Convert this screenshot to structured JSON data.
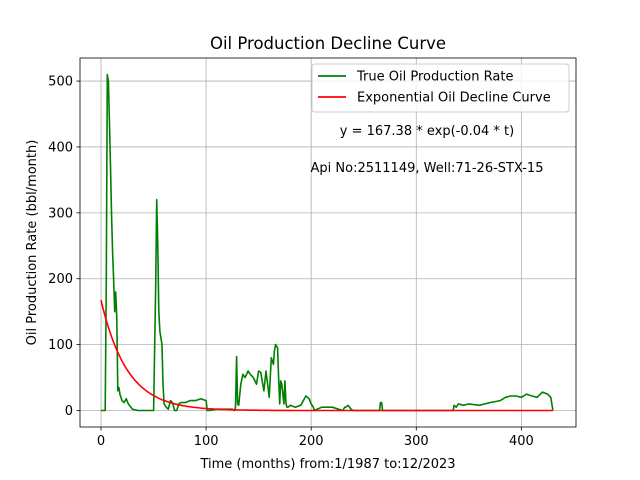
{
  "chart_data": {
    "type": "line",
    "title": "Oil Production Decline Curve",
    "xlabel": "Time (months) from:1/1987 to:12/2023",
    "ylabel": "Oil Production Rate (bbl/month)",
    "xlim": [
      -20,
      452
    ],
    "ylim": [
      -25,
      535
    ],
    "xticks": [
      0,
      100,
      200,
      300,
      400
    ],
    "yticks": [
      0,
      100,
      200,
      300,
      400,
      500
    ],
    "grid": true,
    "legend_position": "top-right",
    "series": [
      {
        "name": "True Oil Production Rate",
        "color": "#008000",
        "x": [
          0,
          4,
          5,
          6,
          7,
          8,
          9,
          10,
          11,
          12,
          13,
          14,
          15,
          16,
          17,
          18,
          20,
          22,
          24,
          26,
          30,
          35,
          40,
          45,
          50,
          52,
          53,
          54,
          55,
          56,
          58,
          59,
          60,
          62,
          64,
          66,
          68,
          70,
          72,
          74,
          76,
          80,
          85,
          90,
          95,
          100,
          101,
          102,
          103,
          110,
          120,
          125,
          127,
          128,
          129,
          130,
          131,
          133,
          135,
          137,
          140,
          142,
          145,
          148,
          150,
          152,
          155,
          157,
          160,
          162,
          164,
          165,
          166,
          168,
          169,
          170,
          171,
          172,
          174,
          175,
          176,
          177,
          178,
          180,
          185,
          190,
          195,
          198,
          200,
          202,
          203,
          210,
          220,
          230,
          232,
          233,
          235,
          238,
          240,
          250,
          260,
          265,
          266,
          267,
          268,
          270,
          280,
          290,
          300,
          310,
          320,
          330,
          335,
          336,
          338,
          340,
          345,
          350,
          360,
          370,
          380,
          385,
          390,
          395,
          400,
          405,
          410,
          415,
          420,
          425,
          428,
          430
        ],
        "y": [
          0,
          0,
          200,
          510,
          500,
          440,
          370,
          300,
          240,
          200,
          150,
          180,
          140,
          30,
          35,
          25,
          15,
          12,
          18,
          10,
          2,
          0,
          0,
          0,
          0,
          190,
          320,
          250,
          150,
          120,
          100,
          40,
          10,
          5,
          2,
          15,
          12,
          0,
          0,
          10,
          12,
          12,
          15,
          15,
          18,
          15,
          0,
          0,
          0,
          2,
          2,
          2,
          0,
          5,
          82,
          10,
          8,
          40,
          55,
          50,
          60,
          55,
          50,
          40,
          60,
          58,
          30,
          60,
          20,
          80,
          70,
          90,
          100,
          95,
          50,
          10,
          45,
          40,
          10,
          45,
          10,
          5,
          5,
          8,
          5,
          8,
          22,
          18,
          10,
          5,
          0,
          5,
          5,
          0,
          5,
          5,
          8,
          2,
          0,
          0,
          0,
          0,
          12,
          12,
          0,
          0,
          0,
          0,
          0,
          0,
          0,
          0,
          0,
          8,
          5,
          10,
          8,
          10,
          8,
          12,
          15,
          20,
          22,
          22,
          20,
          25,
          22,
          20,
          28,
          25,
          20,
          0
        ]
      },
      {
        "name": "Exponential Oil Decline Curve",
        "color": "#ff0000",
        "equation": {
          "a": 167.38,
          "b": -0.04,
          "x_from": 0,
          "x_to": 430
        }
      }
    ],
    "annotations": [
      {
        "text": "y = 167.38 * exp(-0.04 * t)"
      },
      {
        "text": "Api No:2511149, Well:71-26-STX-15"
      }
    ]
  }
}
